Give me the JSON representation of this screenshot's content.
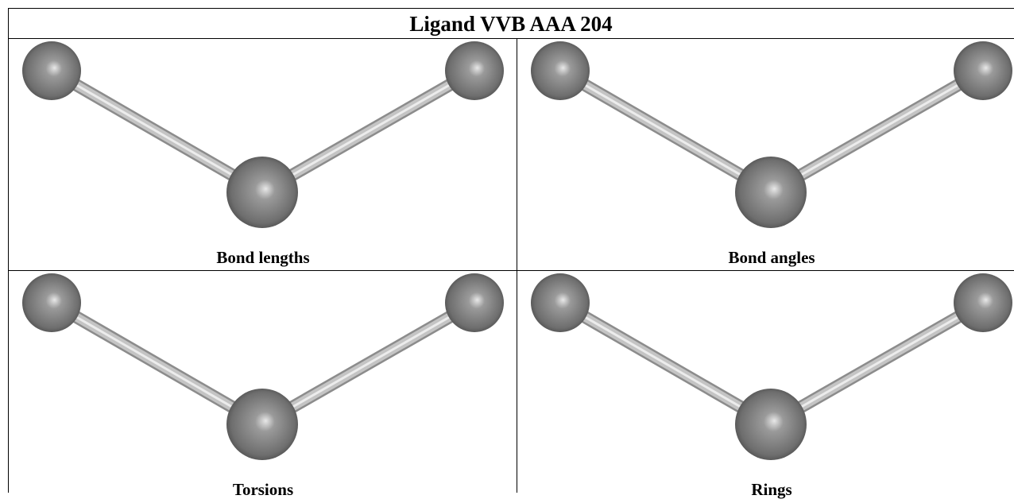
{
  "title": "Ligand VVB AAA 204",
  "panels": [
    {
      "caption": "Bond lengths"
    },
    {
      "caption": "Bond angles"
    },
    {
      "caption": "Torsions"
    },
    {
      "caption": "Rings"
    }
  ]
}
